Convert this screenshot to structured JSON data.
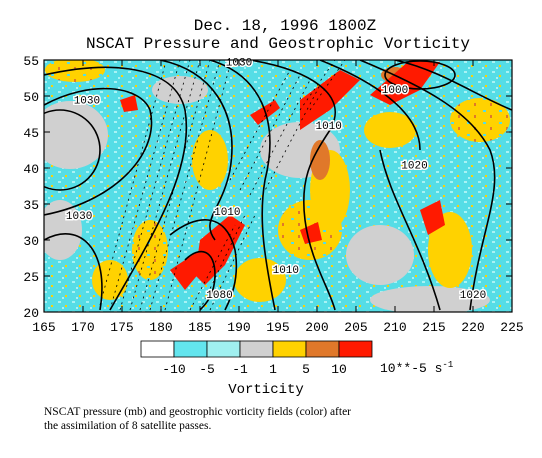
{
  "chart_data": {
    "type": "heatmap",
    "title": "Dec. 18, 1996  1800Z",
    "subtitle": "NSCAT Pressure and Geostrophic Vorticity",
    "xlabel": "",
    "ylabel": "",
    "xlim": [
      165,
      225
    ],
    "ylim": [
      20,
      55
    ],
    "x_ticks": [
      "165",
      "170",
      "175",
      "180",
      "185",
      "190",
      "195",
      "200",
      "205",
      "210",
      "215",
      "220",
      "225"
    ],
    "y_ticks": [
      "20",
      "25",
      "30",
      "35",
      "40",
      "45",
      "50",
      "55"
    ],
    "grid": false,
    "pressure_contour_labels": [
      {
        "label": "1030",
        "lon": 170.5,
        "lat": 49.5
      },
      {
        "label": "1030",
        "lon": 169.5,
        "lat": 33.5
      },
      {
        "label": "1030",
        "lon": 190.0,
        "lat": 54.8
      },
      {
        "label": "1010",
        "lon": 201.5,
        "lat": 46.0
      },
      {
        "label": "1010",
        "lon": 188.5,
        "lat": 34.0
      },
      {
        "label": "1000",
        "lon": 210.0,
        "lat": 51.0
      },
      {
        "label": "1020",
        "lon": 212.5,
        "lat": 40.5
      },
      {
        "label": "1010",
        "lon": 196.0,
        "lat": 26.0
      },
      {
        "label": "1020",
        "lon": 220.0,
        "lat": 22.5
      },
      {
        "label": "1080",
        "lon": 187.5,
        "lat": 22.5
      }
    ],
    "colorbar": {
      "label": "Vorticity",
      "units_label": "10**-5 s",
      "units_exponent": "-1",
      "ticks": [
        "-10",
        "-5",
        "-1",
        "1",
        "5",
        "10"
      ],
      "bins": [
        {
          "color": "#ffffff",
          "range": "< -10"
        },
        {
          "color": "#63e5ee",
          "range": "-10 to -5"
        },
        {
          "color": "#a0f0f0",
          "range": "-5 to -1"
        },
        {
          "color": "#d0d0d0",
          "range": "-1 to 1"
        },
        {
          "color": "#ffd200",
          "range": "1 to 5"
        },
        {
          "color": "#e0782a",
          "range": "5 to 10"
        },
        {
          "color": "#ff1a00",
          "range": "> 10"
        }
      ]
    }
  },
  "caption": {
    "line1": "NSCAT pressure (mb) and geostrophic vorticity fields (color) after",
    "line2": "the assimilation of 8 satellite passes."
  }
}
